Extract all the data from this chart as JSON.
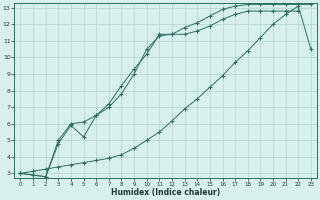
{
  "xlabel": "Humidex (Indice chaleur)",
  "bg_color": "#d8f0eb",
  "line_color": "#2a6e65",
  "grid_color": "#aed4cc",
  "xlim": [
    0,
    23
  ],
  "ylim": [
    3,
    13
  ],
  "xticks": [
    0,
    1,
    2,
    3,
    4,
    5,
    6,
    7,
    8,
    9,
    10,
    11,
    12,
    13,
    14,
    15,
    16,
    17,
    18,
    19,
    20,
    21,
    22,
    23
  ],
  "yticks": [
    3,
    4,
    5,
    6,
    7,
    8,
    9,
    10,
    11,
    12,
    13
  ],
  "line1_x": [
    0,
    1,
    2,
    3,
    4,
    5,
    6,
    7,
    8,
    9,
    10,
    11,
    12,
    13,
    14,
    15,
    16,
    17,
    18,
    19,
    20,
    21,
    22
  ],
  "line1_y": [
    3,
    2.9,
    2.8,
    4.8,
    5.9,
    5.2,
    6.5,
    7.2,
    8.3,
    9.3,
    10.2,
    11.4,
    11.4,
    11.4,
    11.6,
    11.9,
    12.3,
    12.6,
    12.8,
    12.8,
    12.8,
    12.8,
    12.8
  ],
  "line2_x": [
    0,
    1,
    2,
    3,
    4,
    5,
    6,
    7,
    8,
    9,
    10,
    11,
    12,
    13,
    14,
    15,
    16,
    17,
    18,
    19,
    20,
    21,
    22,
    23
  ],
  "line2_y": [
    3,
    2.9,
    2.8,
    5.0,
    6.0,
    6.1,
    6.5,
    7.0,
    7.8,
    9.0,
    10.5,
    11.3,
    11.4,
    11.8,
    12.1,
    12.5,
    12.9,
    13.1,
    13.2,
    13.2,
    13.2,
    13.2,
    13.2,
    13.2
  ],
  "line3_x": [
    0,
    1,
    2,
    3,
    4,
    5,
    6,
    7,
    8,
    9,
    10,
    11,
    12,
    13,
    14,
    15,
    16,
    17,
    18,
    19,
    20,
    21,
    22,
    23
  ],
  "line3_y": [
    3,
    3.13,
    3.26,
    3.39,
    3.52,
    3.65,
    3.78,
    3.91,
    4.13,
    4.52,
    5.0,
    5.5,
    6.17,
    6.9,
    7.5,
    8.2,
    8.9,
    9.7,
    10.4,
    11.2,
    12.0,
    12.6,
    13.1,
    10.5
  ]
}
